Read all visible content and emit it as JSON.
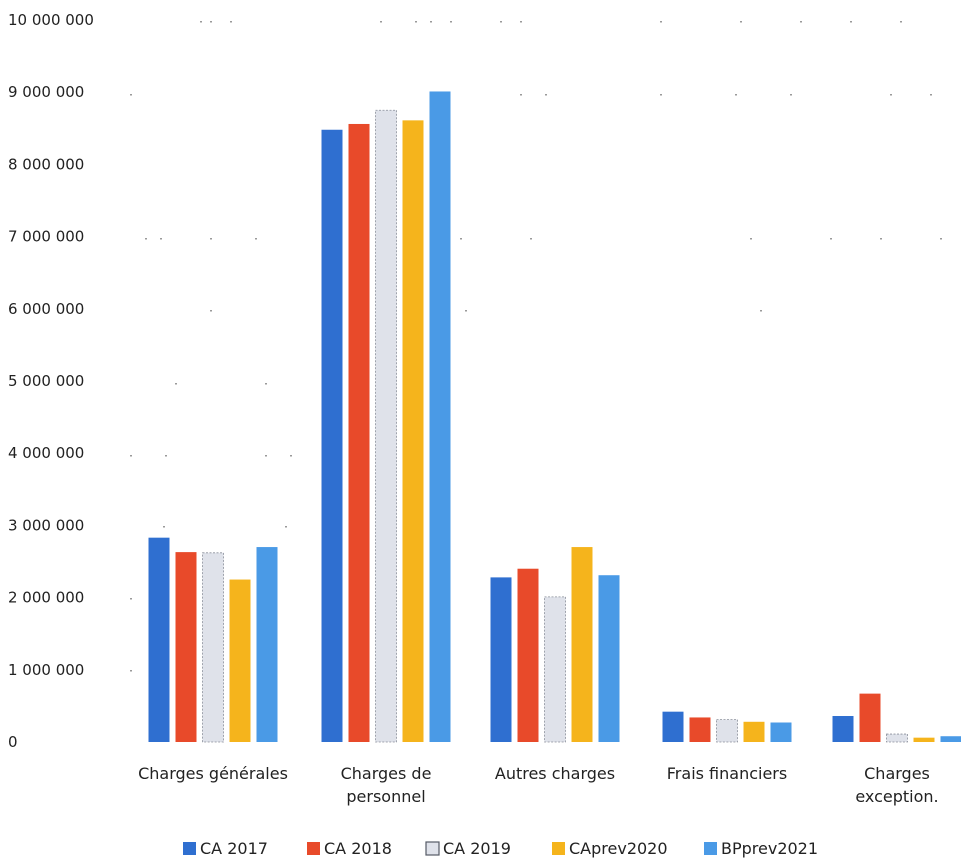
{
  "chart_data": {
    "type": "bar",
    "categories": [
      "Charges générales",
      "Charges de personnel",
      "Autres charges",
      "Frais financiers",
      "Charges exception."
    ],
    "series": [
      {
        "name": "CA 2017",
        "color": "#2f6fd0",
        "values": [
          2830000,
          8480000,
          2280000,
          420000,
          360000
        ]
      },
      {
        "name": "CA 2018",
        "color": "#e84a2a",
        "values": [
          2630000,
          8560000,
          2400000,
          340000,
          670000
        ]
      },
      {
        "name": "CA 2019",
        "color": "#dfe2ea",
        "values": [
          2620000,
          8750000,
          2010000,
          310000,
          110000
        ]
      },
      {
        "name": "CAprev2020",
        "color": "#f5b41c",
        "values": [
          2250000,
          8610000,
          2700000,
          280000,
          60000
        ]
      },
      {
        "name": "BPprev2021",
        "color": "#4a9ae6",
        "values": [
          2700000,
          9010000,
          2310000,
          270000,
          80000
        ]
      }
    ],
    "y_ticks": [
      "0",
      "1 000 000",
      "2 000 000",
      "3 000 000",
      "4 000 000",
      "5 000 000",
      "6 000 000",
      "7 000 000",
      "8 000 000",
      "9 000 000",
      "10 000 000"
    ],
    "ylim": [
      0,
      10000000
    ],
    "grid": false,
    "legend_position": "bottom"
  }
}
